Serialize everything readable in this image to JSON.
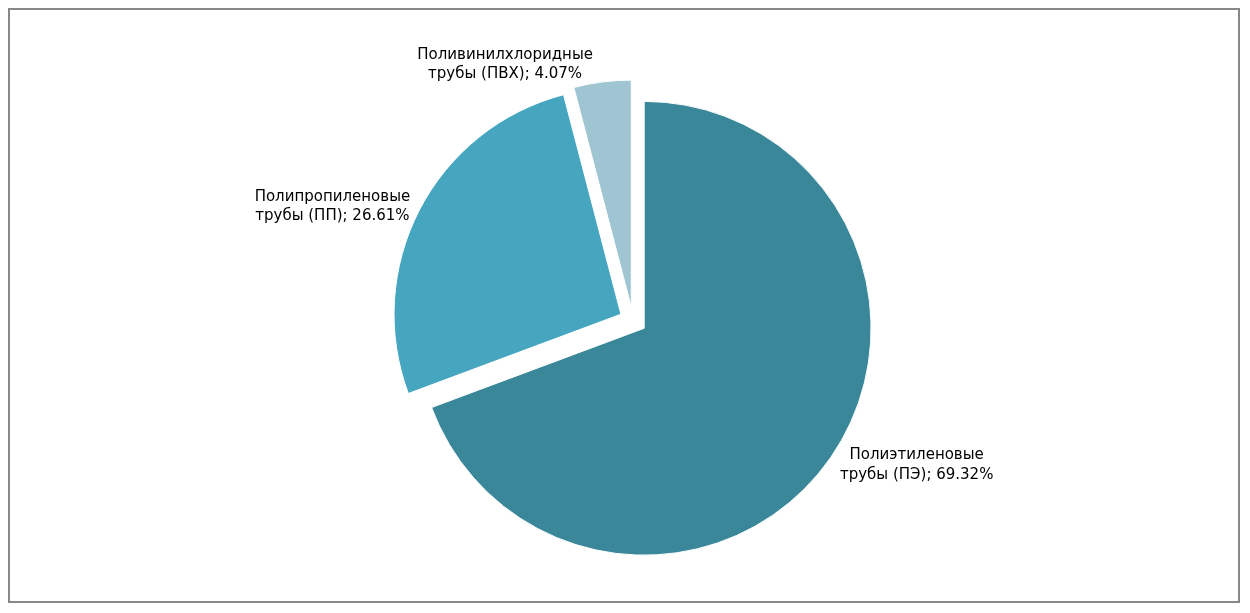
{
  "chart_data": {
    "type": "pie",
    "categories": [
      "Полиэтиленовые трубы (ПЭ)",
      "Полипропиленовые трубы (ПП)",
      "Поливинилхлоридные трубы (ПВХ)"
    ],
    "values": [
      69.32,
      26.61,
      4.07
    ],
    "colors": [
      "#3a8799",
      "#46a6bf",
      "#9fc5d2"
    ],
    "value_labels": [
      "69.32%",
      "26.61%",
      "4.07%"
    ],
    "legend": false
  }
}
